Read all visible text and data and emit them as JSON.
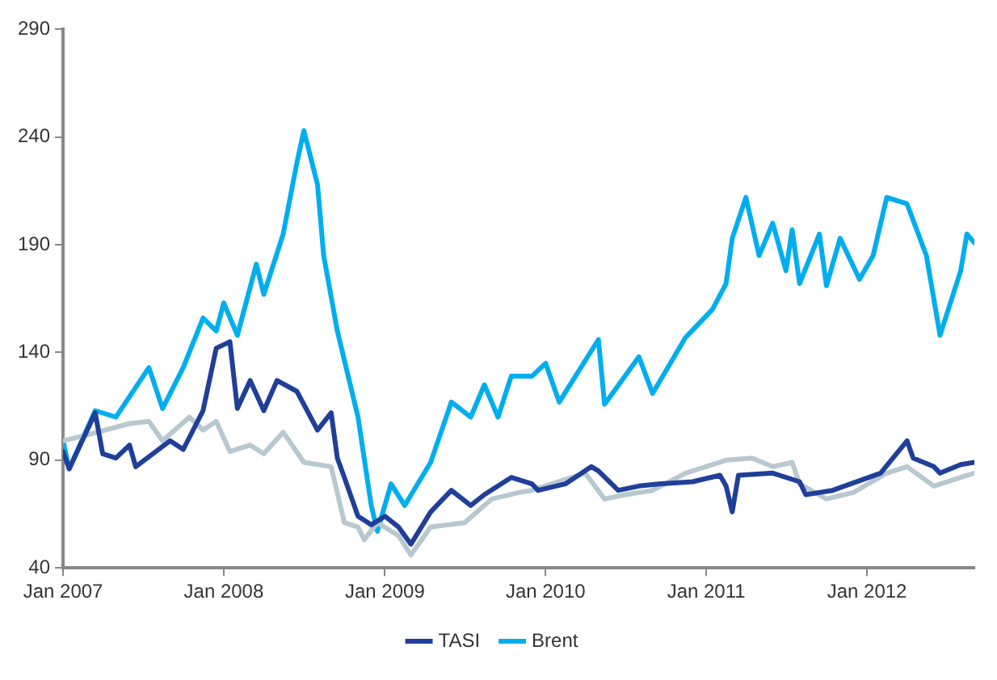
{
  "chart_data": {
    "type": "line",
    "xlim": [
      "2007-01",
      "2012-09"
    ],
    "ylim": [
      40,
      290
    ],
    "yticks": [
      40,
      90,
      140,
      190,
      240,
      290
    ],
    "xticks": [
      {
        "value": "2007-01",
        "label": "Jan 2007"
      },
      {
        "value": "2008-01",
        "label": "Jan 2008"
      },
      {
        "value": "2009-01",
        "label": "Jan 2009"
      },
      {
        "value": "2010-01",
        "label": "Jan 2010"
      },
      {
        "value": "2011-01",
        "label": "Jan 2011"
      },
      {
        "value": "2012-01",
        "label": "Jan 2012"
      }
    ],
    "grid": false,
    "legend": "bottom",
    "marker": "none",
    "line_style": "solid",
    "series": [
      {
        "name": "TASI",
        "color": "#1f3f99",
        "x": [
          "2007-01-01",
          "2007-01-15",
          "2007-03-15",
          "2007-04-01",
          "2007-05-01",
          "2007-06-01",
          "2007-06-15",
          "2007-09-01",
          "2007-10-01",
          "2007-11-15",
          "2007-12-15",
          "2008-01-15",
          "2008-02-01",
          "2008-03-01",
          "2008-04-01",
          "2008-05-01",
          "2008-06-15",
          "2008-08-01",
          "2008-09-01",
          "2008-09-15",
          "2008-10-01",
          "2008-11-01",
          "2008-12-01",
          "2009-01-01",
          "2009-02-01",
          "2009-03-01",
          "2009-04-15",
          "2009-06-01",
          "2009-07-15",
          "2009-08-15",
          "2009-10-15",
          "2009-12-01",
          "2009-12-15",
          "2010-02-15",
          "2010-04-15",
          "2010-05-01",
          "2010-06-15",
          "2010-08-01",
          "2010-09-15",
          "2010-12-01",
          "2011-02-01",
          "2011-02-15",
          "2011-03-01",
          "2011-03-15",
          "2011-06-01",
          "2011-08-01",
          "2011-08-15",
          "2011-10-15",
          "2012-02-01",
          "2012-04-01",
          "2012-04-15",
          "2012-06-01",
          "2012-06-15",
          "2012-08-01",
          "2012-09-01"
        ],
        "values": [
          94,
          86,
          112,
          93,
          91,
          97,
          87,
          99,
          95,
          113,
          142,
          145,
          114,
          127,
          113,
          127,
          122,
          104,
          112,
          91,
          82,
          64,
          60,
          64,
          59,
          51,
          66,
          76,
          69,
          74,
          82,
          79,
          76,
          79,
          87,
          85,
          76,
          78,
          79,
          80,
          83,
          78,
          66,
          83,
          84,
          80,
          74,
          76,
          84,
          99,
          91,
          87,
          84,
          88,
          89
        ]
      },
      {
        "color": "#b8c8d0",
        "x": [
          "2007-01-01",
          "2007-03-01",
          "2007-06-01",
          "2007-07-15",
          "2007-08-15",
          "2007-10-15",
          "2007-11-15",
          "2007-12-15",
          "2008-01-15",
          "2008-03-01",
          "2008-04-01",
          "2008-05-15",
          "2008-07-01",
          "2008-09-01",
          "2008-10-01",
          "2008-11-01",
          "2008-11-15",
          "2008-12-15",
          "2009-02-01",
          "2009-03-01",
          "2009-04-15",
          "2009-07-01",
          "2009-09-01",
          "2009-11-01",
          "2009-12-01",
          "2010-01-15",
          "2010-04-01",
          "2010-05-15",
          "2010-07-01",
          "2010-09-01",
          "2010-11-15",
          "2011-02-15",
          "2011-04-15",
          "2011-06-01",
          "2011-07-15",
          "2011-08-01",
          "2011-10-01",
          "2011-12-01",
          "2012-02-15",
          "2012-04-01",
          "2012-06-01",
          "2012-08-01",
          "2012-09-01"
        ],
        "values": [
          99,
          102,
          107,
          108,
          99,
          110,
          104,
          108,
          94,
          97,
          93,
          103,
          89,
          87,
          61,
          59,
          53,
          61,
          55,
          46,
          59,
          61,
          72,
          75,
          76,
          79,
          84,
          72,
          74,
          76,
          84,
          90,
          91,
          87,
          89,
          79,
          72,
          75,
          84,
          87,
          78,
          82,
          84
        ]
      },
      {
        "name": "Brent",
        "color": "#00aeef",
        "x": [
          "2007-01-01",
          "2007-01-15",
          "2007-03-15",
          "2007-05-01",
          "2007-07-15",
          "2007-08-15",
          "2007-10-01",
          "2007-11-15",
          "2007-12-15",
          "2008-01-01",
          "2008-02-01",
          "2008-03-15",
          "2008-04-01",
          "2008-05-15",
          "2008-06-15",
          "2008-07-01",
          "2008-08-01",
          "2008-08-15",
          "2008-09-15",
          "2008-11-01",
          "2008-12-01",
          "2008-12-15",
          "2009-01-15",
          "2009-02-15",
          "2009-04-15",
          "2009-06-01",
          "2009-07-15",
          "2009-08-15",
          "2009-09-15",
          "2009-10-15",
          "2009-12-01",
          "2010-01-01",
          "2010-02-01",
          "2010-05-01",
          "2010-05-15",
          "2010-08-01",
          "2010-09-01",
          "2010-11-15",
          "2011-01-15",
          "2011-02-15",
          "2011-03-01",
          "2011-04-01",
          "2011-05-01",
          "2011-06-01",
          "2011-07-01",
          "2011-07-15",
          "2011-08-01",
          "2011-09-15",
          "2011-10-01",
          "2011-11-01",
          "2011-12-15",
          "2012-01-15",
          "2012-02-15",
          "2012-04-01",
          "2012-05-15",
          "2012-06-15",
          "2012-08-01",
          "2012-08-15",
          "2012-09-01"
        ],
        "values": [
          99,
          86,
          113,
          110,
          133,
          114,
          133,
          156,
          150,
          163,
          148,
          181,
          167,
          195,
          228,
          243,
          218,
          185,
          150,
          110,
          69,
          57,
          79,
          69,
          89,
          117,
          110,
          125,
          110,
          129,
          129,
          135,
          117,
          146,
          116,
          138,
          121,
          147,
          160,
          172,
          193,
          212,
          185,
          200,
          178,
          197,
          172,
          195,
          171,
          193,
          174,
          185,
          212,
          209,
          185,
          148,
          178,
          195,
          191
        ]
      }
    ]
  }
}
